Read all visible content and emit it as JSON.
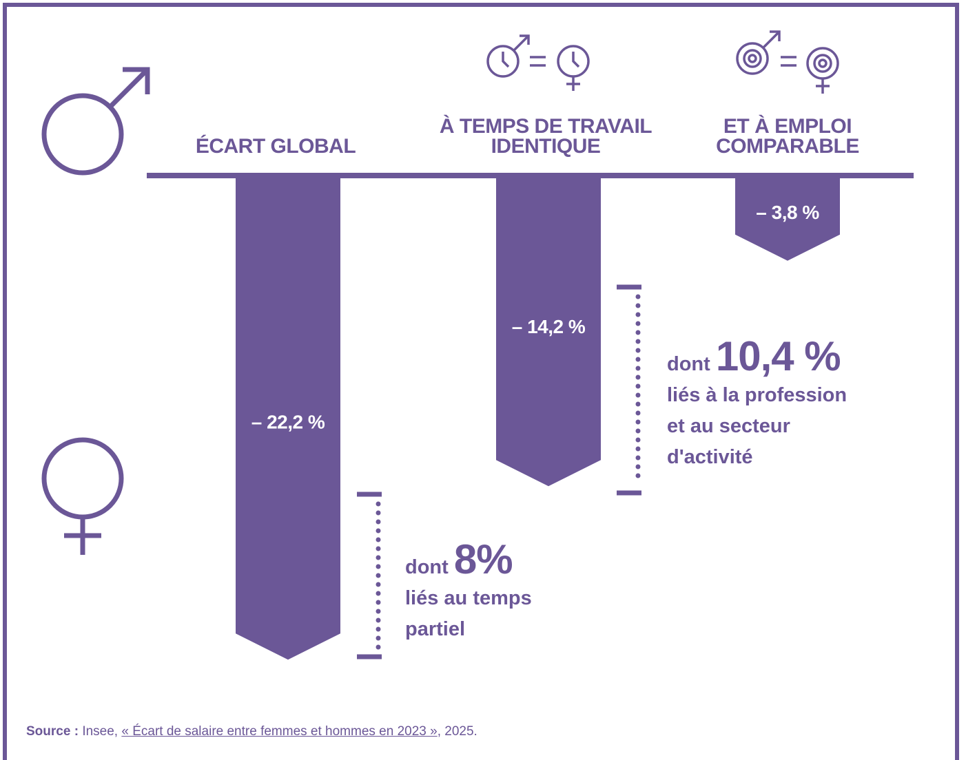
{
  "colors": {
    "accent": "#6b5797",
    "text": "#6b5797",
    "background": "#ffffff"
  },
  "icons": {
    "left_male": "male-symbol-icon",
    "left_female": "female-symbol-icon",
    "header_time": [
      "male-clock-icon",
      "equals-sign",
      "female-clock-icon"
    ],
    "header_job": [
      "male-gear-icon",
      "equals-sign",
      "female-gear-icon"
    ]
  },
  "chart_data": {
    "type": "bar",
    "orientation": "downward",
    "categories": [
      "ÉCART GLOBAL",
      "À TEMPS DE TRAVAIL IDENTIQUE",
      "ET À EMPLOI COMPARABLE"
    ],
    "category_lines": [
      [
        "ÉCART GLOBAL"
      ],
      [
        "À TEMPS DE TRAVAIL",
        "IDENTIQUE"
      ],
      [
        "ET À EMPLOI",
        "COMPARABLE"
      ]
    ],
    "values": [
      -22.2,
      -14.2,
      -3.8
    ],
    "value_labels": [
      "– 22,2 %",
      "– 14,2 %",
      "– 3,8 %"
    ],
    "annotations": [
      {
        "between": [
          0,
          1
        ],
        "from": -14.2,
        "to": -22.2,
        "prefix": "dont",
        "value": "8%",
        "lines": [
          "liés au temps",
          "partiel"
        ]
      },
      {
        "between": [
          1,
          2
        ],
        "from": -3.8,
        "to": -14.2,
        "prefix": "dont",
        "value": "10,4 %",
        "lines": [
          "liés à la profession",
          "et au secteur",
          "d'activité"
        ]
      }
    ],
    "grid": false,
    "legend": "none"
  },
  "source": {
    "label": "Source :",
    "publisher": "Insee,",
    "reference": "« Écart de salaire entre femmes et hommes en 2023 »",
    "year": ", 2025."
  }
}
